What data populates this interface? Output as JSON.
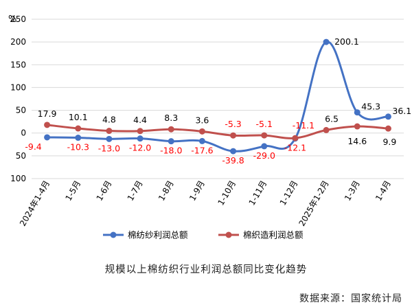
{
  "chart_data": {
    "type": "line",
    "yunit": "%",
    "ylim": [
      -100,
      250
    ],
    "yticks": [
      -100,
      -50,
      0,
      50,
      100,
      150,
      200,
      250
    ],
    "ytick_labels": [
      "100",
      "50",
      "0",
      "50",
      "100",
      "150",
      "200",
      "250"
    ],
    "grid": true,
    "legend_position": "bottom-center",
    "categories": [
      "2024年1-4月",
      "1-5月",
      "1-6月",
      "1-7月",
      "1-8月",
      "1-9月",
      "1-10月",
      "1-11月",
      "1-12月",
      "2025年1-2月",
      "1-3月",
      "1-4月"
    ],
    "series": [
      {
        "name": "棉纺纱利润总额",
        "color": "#4472C4",
        "values": [
          -9.4,
          -10.3,
          -13.0,
          -12.0,
          -18.0,
          -17.6,
          -39.8,
          -29.0,
          -12.1,
          200.1,
          45.3,
          36.1
        ],
        "labels": [
          "-9.4",
          "-10.3",
          "-13.0",
          "-12.0",
          "-18.0",
          "-17.6",
          "-39.8",
          "-29.0",
          "-12.1",
          "200.1",
          "45.3",
          "36.1"
        ]
      },
      {
        "name": "棉织造利润总额",
        "color": "#C0504D",
        "values": [
          17.9,
          10.1,
          4.8,
          4.4,
          8.3,
          3.6,
          -5.3,
          -5.1,
          -11.1,
          6.5,
          14.6,
          9.9
        ],
        "labels": [
          "17.9",
          "10.1",
          "4.8",
          "4.4",
          "8.3",
          "3.6",
          "-5.3",
          "-5.1",
          "-11.1",
          "6.5",
          "14.6",
          "9.9"
        ]
      }
    ]
  },
  "caption": "规模以上棉纺织行业利润总额同比变化趋势",
  "source": "数据来源：国家统计局"
}
